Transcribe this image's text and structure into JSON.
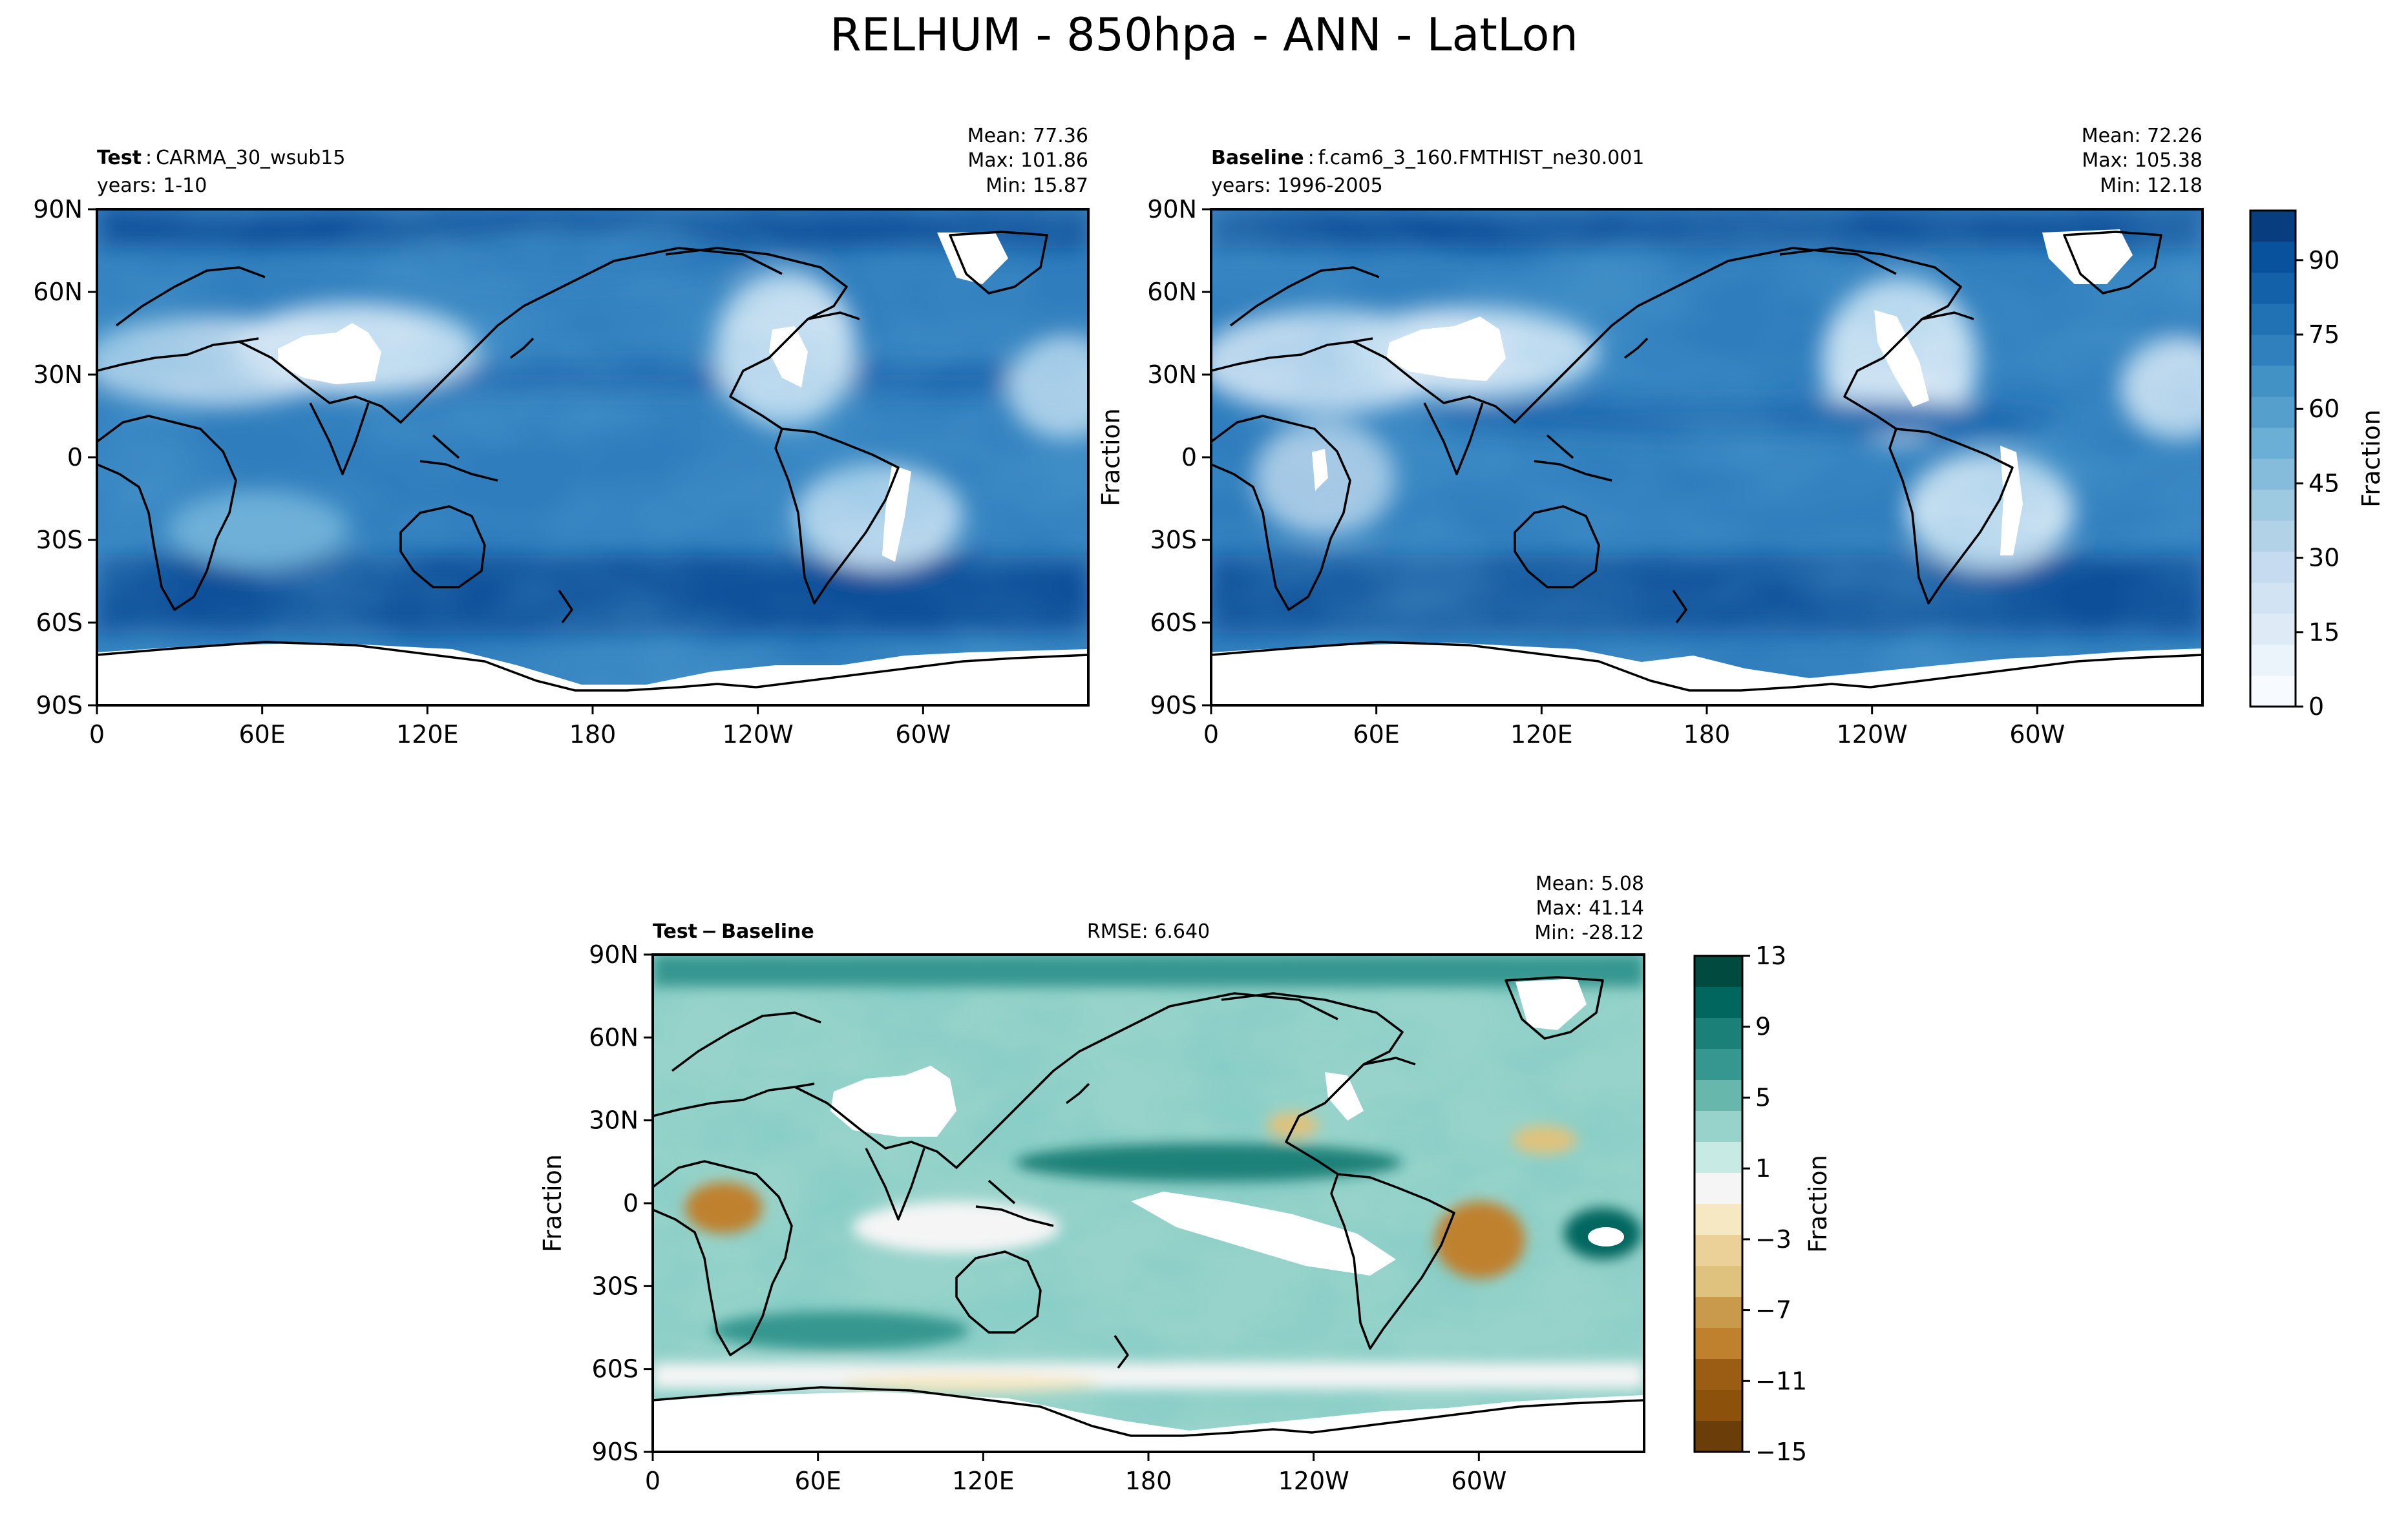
{
  "title": "RELHUM - 850hpa - ANN - LatLon",
  "x_ticks": [
    "0",
    "60E",
    "120E",
    "180",
    "120W",
    "60W"
  ],
  "y_ticks": [
    "90N",
    "60N",
    "30N",
    "0",
    "30S",
    "60S",
    "90S"
  ],
  "panels": {
    "test": {
      "label_bold": "Test",
      "label_sep": ":",
      "case": "CARMA_30_wsub15",
      "years": "years: 1-10",
      "mean": "Mean: 77.36",
      "max": "Max: 101.86",
      "min": "Min: 15.87"
    },
    "baseline": {
      "label_bold": "Baseline",
      "label_sep": ":",
      "case": "f.cam6_3_160.FMTHIST_ne30.001",
      "years": "years: 1996-2005",
      "mean": "Mean: 72.26",
      "max": "Max: 105.38",
      "min": "Min: 12.18",
      "ylabel": "Fraction"
    },
    "diff": {
      "label_a": "Test",
      "label_minus": "−",
      "label_b": "Baseline",
      "rmse": "RMSE: 6.640",
      "mean": "Mean:  5.08",
      "max": "Max: 41.14",
      "min": "Min: -28.12",
      "ylabel": "Fraction"
    }
  },
  "colorbars": {
    "main": {
      "label": "Fraction",
      "ticks": [
        "0",
        "15",
        "30",
        "45",
        "60",
        "75",
        "90"
      ],
      "colors": [
        "#f7fbff",
        "#ebf3fb",
        "#deebf7",
        "#d2e3f3",
        "#c6dbef",
        "#b2d2e8",
        "#9ecae1",
        "#85bcdc",
        "#6baed6",
        "#559fcd",
        "#4292c6",
        "#3080bd",
        "#2171b5",
        "#1361a9",
        "#08519c",
        "#083e80"
      ]
    },
    "diff": {
      "label": "Fraction",
      "ticks": [
        "13",
        "9",
        "5",
        "1",
        "−3",
        "−7",
        "−11",
        "−15"
      ],
      "colors": [
        "#004a3f",
        "#01665e",
        "#1b8178",
        "#35978f",
        "#67b7ad",
        "#97d3ca",
        "#c7eae5",
        "#f5f5f5",
        "#f6e8c3",
        "#ebd198",
        "#dfc27d",
        "#c99a4b",
        "#bf812d",
        "#9a5d13",
        "#8c510a",
        "#6a3d09"
      ]
    }
  },
  "chart_data": [
    {
      "type": "heatmap",
      "panel": "Test",
      "case": "CARMA_30_wsub15",
      "years": "1-10",
      "variable": "RELHUM",
      "level": "850hpa",
      "mean": 77.36,
      "max": 101.86,
      "min": 15.87,
      "xlim": [
        0,
        360
      ],
      "ylim": [
        -90,
        90
      ],
      "colorbar_range": [
        0,
        100
      ],
      "colorbar_label": "Fraction"
    },
    {
      "type": "heatmap",
      "panel": "Baseline",
      "case": "f.cam6_3_160.FMTHIST_ne30.001",
      "years": "1996-2005",
      "variable": "RELHUM",
      "level": "850hpa",
      "mean": 72.26,
      "max": 105.38,
      "min": 12.18,
      "xlim": [
        0,
        360
      ],
      "ylim": [
        -90,
        90
      ],
      "colorbar_range": [
        0,
        100
      ],
      "colorbar_label": "Fraction"
    },
    {
      "type": "heatmap",
      "panel": "Test - Baseline",
      "rmse": 6.64,
      "mean": 5.08,
      "max": 41.14,
      "min": -28.12,
      "xlim": [
        0,
        360
      ],
      "ylim": [
        -90,
        90
      ],
      "colorbar_range": [
        -15,
        13
      ],
      "colorbar_label": "Fraction"
    }
  ]
}
